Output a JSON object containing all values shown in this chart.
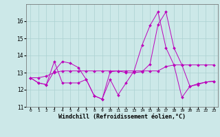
{
  "xlabel": "Windchill (Refroidissement éolien,°C)",
  "ylabel": "",
  "bg_color": "#cce8e8",
  "line_color": "#bb00bb",
  "grid_color": "#aad0d0",
  "xlim": [
    -0.5,
    23.5
  ],
  "ylim": [
    11,
    17
  ],
  "yticks": [
    11,
    12,
    13,
    14,
    15,
    16
  ],
  "xticks": [
    0,
    1,
    2,
    3,
    4,
    5,
    6,
    7,
    8,
    9,
    10,
    11,
    12,
    13,
    14,
    15,
    16,
    17,
    18,
    19,
    20,
    21,
    22,
    23
  ],
  "series1_x": [
    0,
    1,
    2,
    3,
    4,
    5,
    6,
    7,
    8,
    9,
    10,
    11,
    12,
    13,
    14,
    15,
    16,
    17,
    18,
    19,
    20,
    21,
    22,
    23
  ],
  "series1_y": [
    12.7,
    12.4,
    12.3,
    13.1,
    13.65,
    13.55,
    13.3,
    12.6,
    11.65,
    11.45,
    13.05,
    13.1,
    13.0,
    13.0,
    13.05,
    13.5,
    15.8,
    16.55,
    14.45,
    13.45,
    12.2,
    12.3,
    12.45,
    12.5
  ],
  "series2_x": [
    0,
    1,
    2,
    3,
    4,
    5,
    6,
    7,
    8,
    9,
    10,
    11,
    12,
    13,
    14,
    15,
    16,
    17,
    18,
    19,
    20,
    21,
    22,
    23
  ],
  "series2_y": [
    12.7,
    12.4,
    12.3,
    13.65,
    12.4,
    12.4,
    12.4,
    12.6,
    11.65,
    11.45,
    12.6,
    11.7,
    12.4,
    13.1,
    14.6,
    15.75,
    16.55,
    14.45,
    13.45,
    11.55,
    12.2,
    12.35,
    12.45,
    12.5
  ],
  "series3_x": [
    0,
    1,
    2,
    3,
    4,
    5,
    6,
    7,
    8,
    9,
    10,
    11,
    12,
    13,
    14,
    15,
    16,
    17,
    18,
    19,
    20,
    21,
    22,
    23
  ],
  "series3_y": [
    12.7,
    12.7,
    12.8,
    13.0,
    13.1,
    13.1,
    13.1,
    13.1,
    13.1,
    13.1,
    13.1,
    13.1,
    13.1,
    13.1,
    13.1,
    13.1,
    13.1,
    13.35,
    13.45,
    13.45,
    13.45,
    13.45,
    13.45,
    13.45
  ],
  "xlabel_fontsize": 6.0,
  "ylabel_fontsize": 5.5,
  "xtick_fontsize": 4.5,
  "ytick_fontsize": 5.5
}
